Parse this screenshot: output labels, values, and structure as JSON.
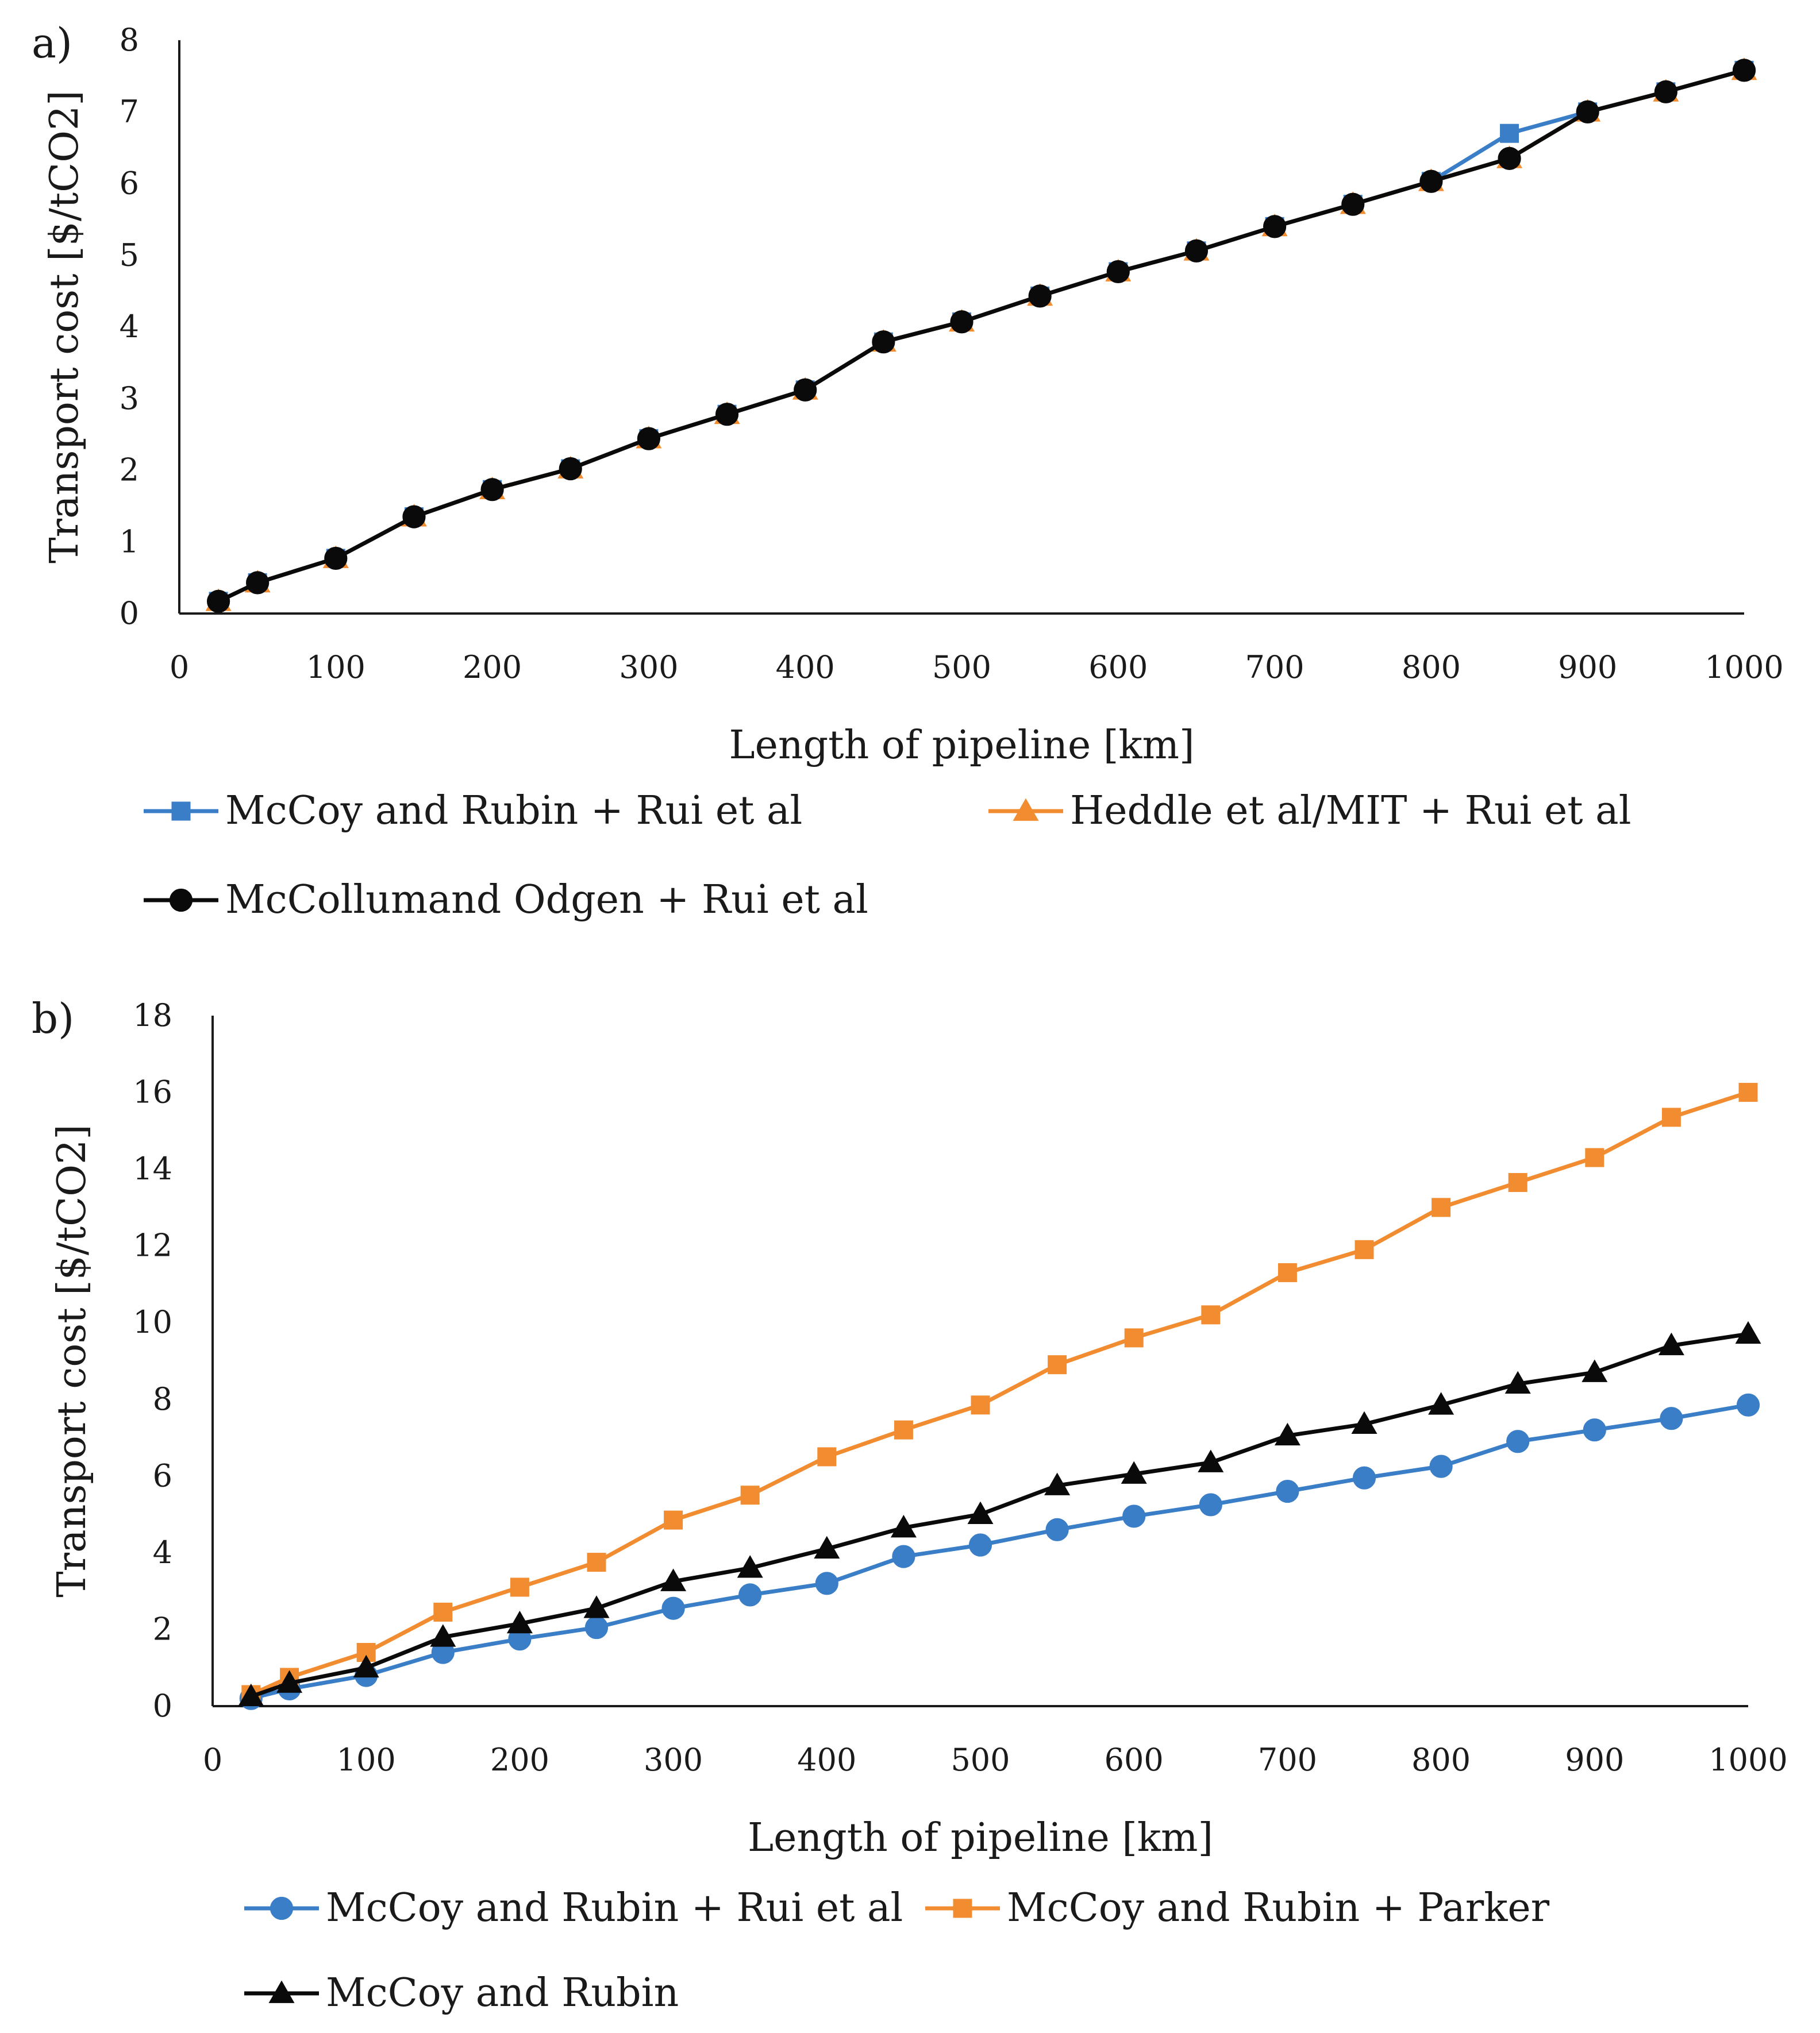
{
  "chart_data": [
    {
      "panel_label": "a)",
      "type": "line",
      "xlabel": "Length of pipeline [km]",
      "ylabel": "Transport cost [$/tCO2]",
      "xlim": [
        0,
        1000
      ],
      "ylim": [
        0,
        8
      ],
      "xticks": [
        0,
        100,
        200,
        300,
        400,
        500,
        600,
        700,
        800,
        900,
        1000
      ],
      "yticks": [
        0,
        1,
        2,
        3,
        4,
        5,
        6,
        7,
        8
      ],
      "grid": false,
      "legend_position": "bottom",
      "x": [
        25,
        50,
        100,
        150,
        200,
        250,
        300,
        350,
        400,
        450,
        500,
        550,
        600,
        650,
        700,
        750,
        800,
        850,
        900,
        950,
        1000
      ],
      "series": [
        {
          "name": "McCoy and Rubin + Rui et al",
          "color": "#3a7ec8",
          "marker": "square",
          "values": [
            0.17,
            0.43,
            0.77,
            1.35,
            1.73,
            2.02,
            2.44,
            2.78,
            3.12,
            3.79,
            4.07,
            4.43,
            4.77,
            5.06,
            5.4,
            5.71,
            6.03,
            6.7,
            7.0,
            7.28,
            7.58
          ]
        },
        {
          "name": "Heddle et al/MIT + Rui et al",
          "color": "#f28c30",
          "marker": "triangle",
          "values": [
            0.17,
            0.43,
            0.77,
            1.35,
            1.73,
            2.02,
            2.44,
            2.78,
            3.12,
            3.79,
            4.07,
            4.43,
            4.77,
            5.06,
            5.4,
            5.71,
            6.03,
            6.35,
            7.0,
            7.28,
            7.58
          ]
        },
        {
          "name": "McCollumand Odgen + Rui et al",
          "color": "#0a0a0a",
          "marker": "circle",
          "values": [
            0.17,
            0.43,
            0.77,
            1.35,
            1.73,
            2.02,
            2.44,
            2.78,
            3.12,
            3.79,
            4.07,
            4.43,
            4.77,
            5.06,
            5.4,
            5.71,
            6.03,
            6.35,
            7.0,
            7.28,
            7.58
          ]
        }
      ]
    },
    {
      "panel_label": "b)",
      "type": "line",
      "xlabel": "Length of pipeline [km]",
      "ylabel": "Transport cost [$/tCO2]",
      "xlim": [
        0,
        1000
      ],
      "ylim": [
        0,
        18
      ],
      "xticks": [
        0,
        100,
        200,
        300,
        400,
        500,
        600,
        700,
        800,
        900,
        1000
      ],
      "yticks": [
        0,
        2,
        4,
        6,
        8,
        10,
        12,
        14,
        16,
        18
      ],
      "grid": false,
      "legend_position": "bottom",
      "x": [
        25,
        50,
        100,
        150,
        200,
        250,
        300,
        350,
        400,
        450,
        500,
        550,
        600,
        650,
        700,
        750,
        800,
        850,
        900,
        950,
        1000
      ],
      "series": [
        {
          "name": "McCoy and Rubin + Rui et al",
          "color": "#3a7ec8",
          "marker": "circle",
          "values": [
            0.2,
            0.45,
            0.8,
            1.4,
            1.75,
            2.05,
            2.55,
            2.9,
            3.2,
            3.9,
            4.2,
            4.6,
            4.95,
            5.25,
            5.6,
            5.95,
            6.25,
            6.9,
            7.2,
            7.5,
            7.85
          ]
        },
        {
          "name": "McCoy and Rubin + Parker",
          "color": "#f28c30",
          "marker": "square",
          "values": [
            0.3,
            0.75,
            1.4,
            2.45,
            3.1,
            3.75,
            4.85,
            5.5,
            6.5,
            7.2,
            7.85,
            8.9,
            9.6,
            10.2,
            11.3,
            11.9,
            13.0,
            13.65,
            14.3,
            15.35,
            16.0
          ]
        },
        {
          "name": "McCoy and Rubin",
          "color": "#0a0a0a",
          "marker": "triangle",
          "values": [
            0.25,
            0.6,
            1.0,
            1.8,
            2.15,
            2.55,
            3.25,
            3.6,
            4.1,
            4.65,
            5.0,
            5.75,
            6.05,
            6.35,
            7.05,
            7.35,
            7.85,
            8.4,
            8.7,
            9.4,
            9.7
          ]
        }
      ]
    }
  ]
}
